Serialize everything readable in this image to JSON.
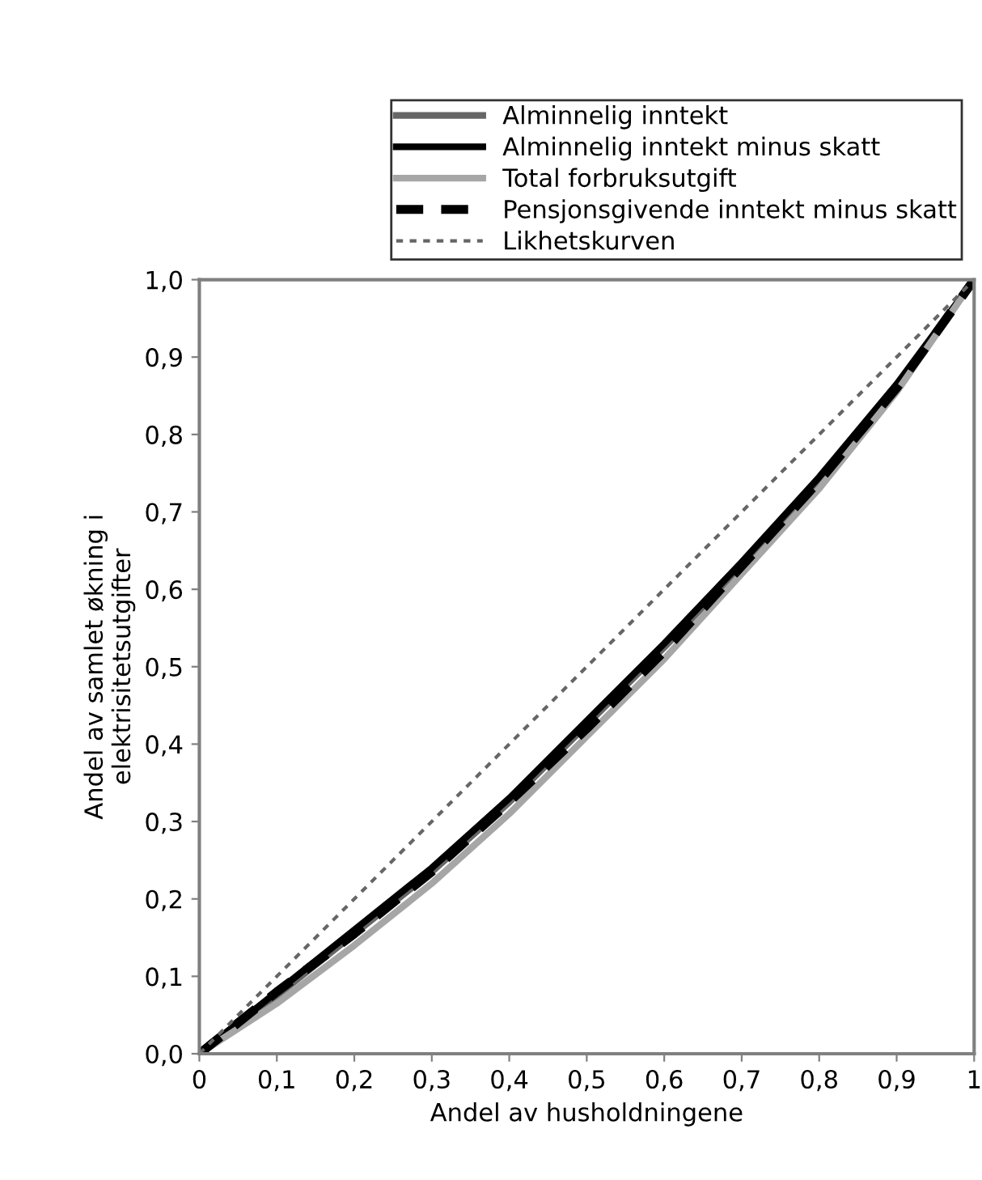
{
  "chart_data": {
    "type": "line",
    "xlabel": "Andel av husholdningene",
    "ylabel": "Andel av samlet økning i\nelektrisitetsutgifter",
    "x": [
      0,
      0.1,
      0.2,
      0.3,
      0.4,
      0.5,
      0.6,
      0.7,
      0.8,
      0.9,
      1
    ],
    "xlim": [
      0,
      1
    ],
    "ylim": [
      0,
      1
    ],
    "xticks": [
      0,
      {
        "value": 0.1,
        "label": "0,1"
      },
      {
        "value": 0.2,
        "label": "0,2"
      },
      {
        "value": 0.3,
        "label": "0,3"
      },
      {
        "value": 0.4,
        "label": "0,4"
      },
      {
        "value": 0.5,
        "label": "0,5"
      },
      {
        "value": 0.6,
        "label": "0,6"
      },
      {
        "value": 0.7,
        "label": "0,7"
      },
      {
        "value": 0.8,
        "label": "0,8"
      },
      {
        "value": 0.9,
        "label": "0,9"
      },
      1
    ],
    "yticks": [
      {
        "value": 0,
        "label": "0,0"
      },
      {
        "value": 0.1,
        "label": "0,1"
      },
      {
        "value": 0.2,
        "label": "0,2"
      },
      {
        "value": 0.3,
        "label": "0,3"
      },
      {
        "value": 0.4,
        "label": "0,4"
      },
      {
        "value": 0.5,
        "label": "0,5"
      },
      {
        "value": 0.6,
        "label": "0,6"
      },
      {
        "value": 0.7,
        "label": "0,7"
      },
      {
        "value": 0.8,
        "label": "0,8"
      },
      {
        "value": 0.9,
        "label": "0,9"
      },
      {
        "value": 1,
        "label": "1,0"
      }
    ],
    "grid": false,
    "legend": "top right",
    "marker": "none",
    "series": [
      {
        "name": "Alminnelig inntekt",
        "color": "#666666",
        "line_style": "solid",
        "values": [
          0,
          0.075,
          0.155,
          0.235,
          0.325,
          0.425,
          0.525,
          0.63,
          0.74,
          0.86,
          1
        ]
      },
      {
        "name": "Alminnelig inntekt minus skatt",
        "color": "#000000",
        "line_style": "solid",
        "values": [
          0,
          0.08,
          0.16,
          0.24,
          0.33,
          0.43,
          0.53,
          0.635,
          0.745,
          0.865,
          1
        ]
      },
      {
        "name": "Total forbruksutgift",
        "color": "#a6a6a6",
        "line_style": "solid",
        "values": [
          0,
          0.065,
          0.14,
          0.22,
          0.31,
          0.41,
          0.51,
          0.62,
          0.73,
          0.855,
          1
        ]
      },
      {
        "name": "Pensjonsgivende inntekt minus skatt",
        "color": "#000000",
        "line_style": "dashed",
        "values": [
          0,
          0.08,
          0.155,
          0.235,
          0.325,
          0.42,
          0.52,
          0.63,
          0.74,
          0.86,
          1
        ]
      },
      {
        "name": "Likhetskurven",
        "color": "#666666",
        "line_style": "dotted",
        "x": [
          0,
          1
        ],
        "values": [
          0,
          1
        ]
      }
    ]
  }
}
